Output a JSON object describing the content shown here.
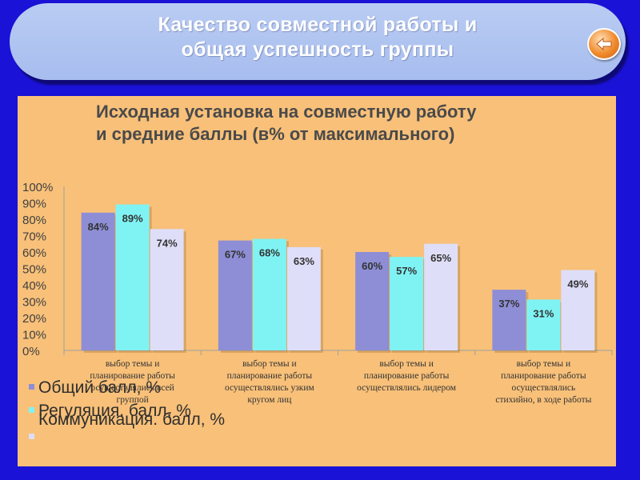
{
  "slide": {
    "title_line1": "Качество совместной работы и",
    "title_line2": "общая успешность группы"
  },
  "chart_data": {
    "type": "bar",
    "title": [
      "Исходная установка на совместную работу",
      "и средние баллы (в% от максимального)"
    ],
    "categories": [
      [
        "выбор темы и",
        "планирование работы",
        "осуществлялись всей",
        "группой"
      ],
      [
        "выбор темы и",
        "планирование работы",
        "осуществлялись узким",
        "кругом лиц"
      ],
      [
        "выбор темы и",
        "планирование работы",
        "осуществлялись лидером"
      ],
      [
        "выбор темы и",
        "планирование работы",
        "осуществлялись",
        "стихийно, в ходе работы"
      ]
    ],
    "series": [
      {
        "name": "Общий балл, %",
        "values": [
          84,
          67,
          60,
          37
        ],
        "color": "#8e8ed6"
      },
      {
        "name": "Регуляция. балл, %",
        "values": [
          89,
          68,
          57,
          31
        ],
        "color": "#7ff3f3"
      },
      {
        "name": "Коммуникация. балл, %",
        "values": [
          74,
          63,
          65,
          49
        ],
        "color": "#dedef8"
      }
    ],
    "data_labels": [
      [
        "84%",
        "67%",
        "60%",
        "37%"
      ],
      [
        "89%",
        "68%",
        "57%",
        "31%"
      ],
      [
        "74%",
        "63%",
        "65%",
        "49%"
      ]
    ],
    "yticks": [
      "0%",
      "10%",
      "20%",
      "30%",
      "40%",
      "50%",
      "60%",
      "70%",
      "80%",
      "90%",
      "100%"
    ],
    "ylim": [
      0,
      100
    ],
    "grid": false,
    "legend_position": "bottom-left"
  }
}
